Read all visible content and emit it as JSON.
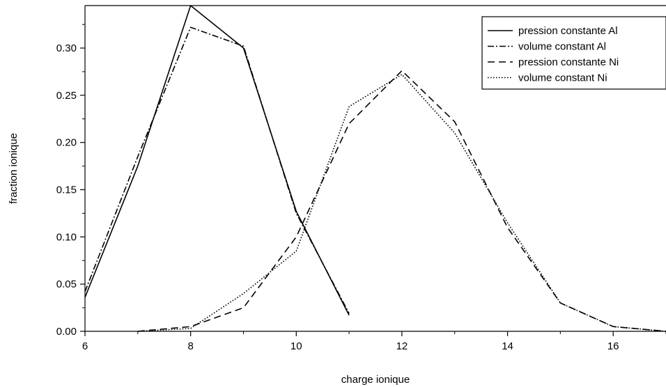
{
  "chart_data": {
    "type": "line",
    "title": "",
    "xlabel": "charge ionique",
    "ylabel": "fraction ionique",
    "xlim": [
      6,
      17
    ],
    "ylim": [
      0,
      0.345
    ],
    "xticks": [
      6,
      8,
      10,
      12,
      14,
      16
    ],
    "xtick_labels": [
      "6",
      "8",
      "10",
      "12",
      "14",
      "16"
    ],
    "yticks": [
      0,
      0.05,
      0.1,
      0.15,
      0.2,
      0.25,
      0.3
    ],
    "ytick_labels": [
      "0.00",
      "0.05",
      "0.10",
      "0.15",
      "0.20",
      "0.25",
      "0.30"
    ],
    "grid": false,
    "legend_position": "top-right",
    "series": [
      {
        "name": "pression constante Al",
        "dash": "solid",
        "color": "#000000",
        "x": [
          6,
          7,
          8,
          9,
          10,
          11
        ],
        "y": [
          0.036,
          0.175,
          0.345,
          0.3,
          0.127,
          0.017
        ]
      },
      {
        "name": "volume constant Al",
        "dash": "dashdot",
        "color": "#000000",
        "x": [
          6,
          7,
          8,
          9,
          10,
          11
        ],
        "y": [
          0.042,
          0.185,
          0.322,
          0.302,
          0.125,
          0.019
        ]
      },
      {
        "name": "pression constante Ni",
        "dash": "dashed",
        "color": "#000000",
        "x": [
          7,
          8,
          9,
          10,
          11,
          12,
          13,
          14,
          15,
          16,
          17
        ],
        "y": [
          0.0,
          0.005,
          0.025,
          0.1,
          0.22,
          0.276,
          0.222,
          0.11,
          0.03,
          0.005,
          0.0
        ]
      },
      {
        "name": "volume constant Ni",
        "dash": "dotted",
        "color": "#000000",
        "x": [
          7,
          8,
          9,
          10,
          11,
          12,
          13,
          14,
          15,
          16,
          17
        ],
        "y": [
          0.0,
          0.003,
          0.04,
          0.085,
          0.238,
          0.272,
          0.21,
          0.115,
          0.03,
          0.005,
          0.0
        ]
      }
    ]
  }
}
